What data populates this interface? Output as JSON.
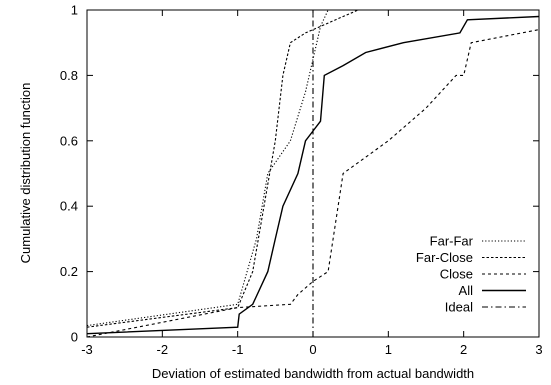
{
  "chart_data": {
    "type": "line",
    "title": "",
    "xlabel": "Deviation of estimated bandwidth from actual bandwidth",
    "ylabel": "Cumulative distribution function",
    "xlim": [
      -3,
      3
    ],
    "ylim": [
      0,
      1
    ],
    "xticks": [
      "-3",
      "-2",
      "-1",
      "0",
      "1",
      "2",
      "3"
    ],
    "yticks": [
      "0",
      "0.2",
      "0.4",
      "0.6",
      "0.8",
      "1"
    ],
    "grid": false,
    "legend_position": "bottom-right",
    "series": [
      {
        "name": "Far-Far",
        "style": "dotted",
        "color": "#000000",
        "points": [
          [
            -3,
            0.035
          ],
          [
            -1,
            0.1
          ],
          [
            -0.75,
            0.3
          ],
          [
            -0.6,
            0.5
          ],
          [
            -0.45,
            0.55
          ],
          [
            -0.3,
            0.6
          ],
          [
            -0.1,
            0.75
          ],
          [
            0,
            0.85
          ],
          [
            0.05,
            0.9
          ],
          [
            0.1,
            0.95
          ],
          [
            0.2,
            1.0
          ]
        ]
      },
      {
        "name": "Far-Close",
        "style": "dashed",
        "color": "#000000",
        "points": [
          [
            -3,
            0.03
          ],
          [
            -1,
            0.09
          ],
          [
            -0.8,
            0.2
          ],
          [
            -0.65,
            0.4
          ],
          [
            -0.5,
            0.6
          ],
          [
            -0.4,
            0.8
          ],
          [
            -0.3,
            0.9
          ],
          [
            -0.1,
            0.93
          ],
          [
            0.1,
            0.95
          ],
          [
            0.4,
            0.98
          ],
          [
            0.6,
            1.0
          ]
        ]
      },
      {
        "name": "Close",
        "style": "dash-short",
        "color": "#000000",
        "points": [
          [
            -3,
            0.0
          ],
          [
            -1,
            0.09
          ],
          [
            -0.3,
            0.1
          ],
          [
            -0.2,
            0.13
          ],
          [
            0,
            0.17
          ],
          [
            0.2,
            0.2
          ],
          [
            0.4,
            0.5
          ],
          [
            1,
            0.6
          ],
          [
            1.5,
            0.7
          ],
          [
            1.9,
            0.8
          ],
          [
            2.0,
            0.8
          ],
          [
            2.1,
            0.9
          ],
          [
            3,
            0.94
          ]
        ]
      },
      {
        "name": "All",
        "style": "solid",
        "color": "#000000",
        "points": [
          [
            -3,
            0.01
          ],
          [
            -1,
            0.03
          ],
          [
            -0.98,
            0.07
          ],
          [
            -0.8,
            0.1
          ],
          [
            -0.6,
            0.2
          ],
          [
            -0.5,
            0.3
          ],
          [
            -0.4,
            0.4
          ],
          [
            -0.2,
            0.5
          ],
          [
            -0.1,
            0.6
          ],
          [
            0,
            0.63
          ],
          [
            0.1,
            0.66
          ],
          [
            0.15,
            0.8
          ],
          [
            0.4,
            0.83
          ],
          [
            0.7,
            0.87
          ],
          [
            1.2,
            0.9
          ],
          [
            1.95,
            0.93
          ],
          [
            2.05,
            0.97
          ],
          [
            3,
            0.98
          ]
        ]
      },
      {
        "name": "Ideal",
        "style": "dash-dot",
        "color": "#000000",
        "points": [
          [
            0,
            0
          ],
          [
            0,
            1
          ]
        ]
      }
    ]
  }
}
